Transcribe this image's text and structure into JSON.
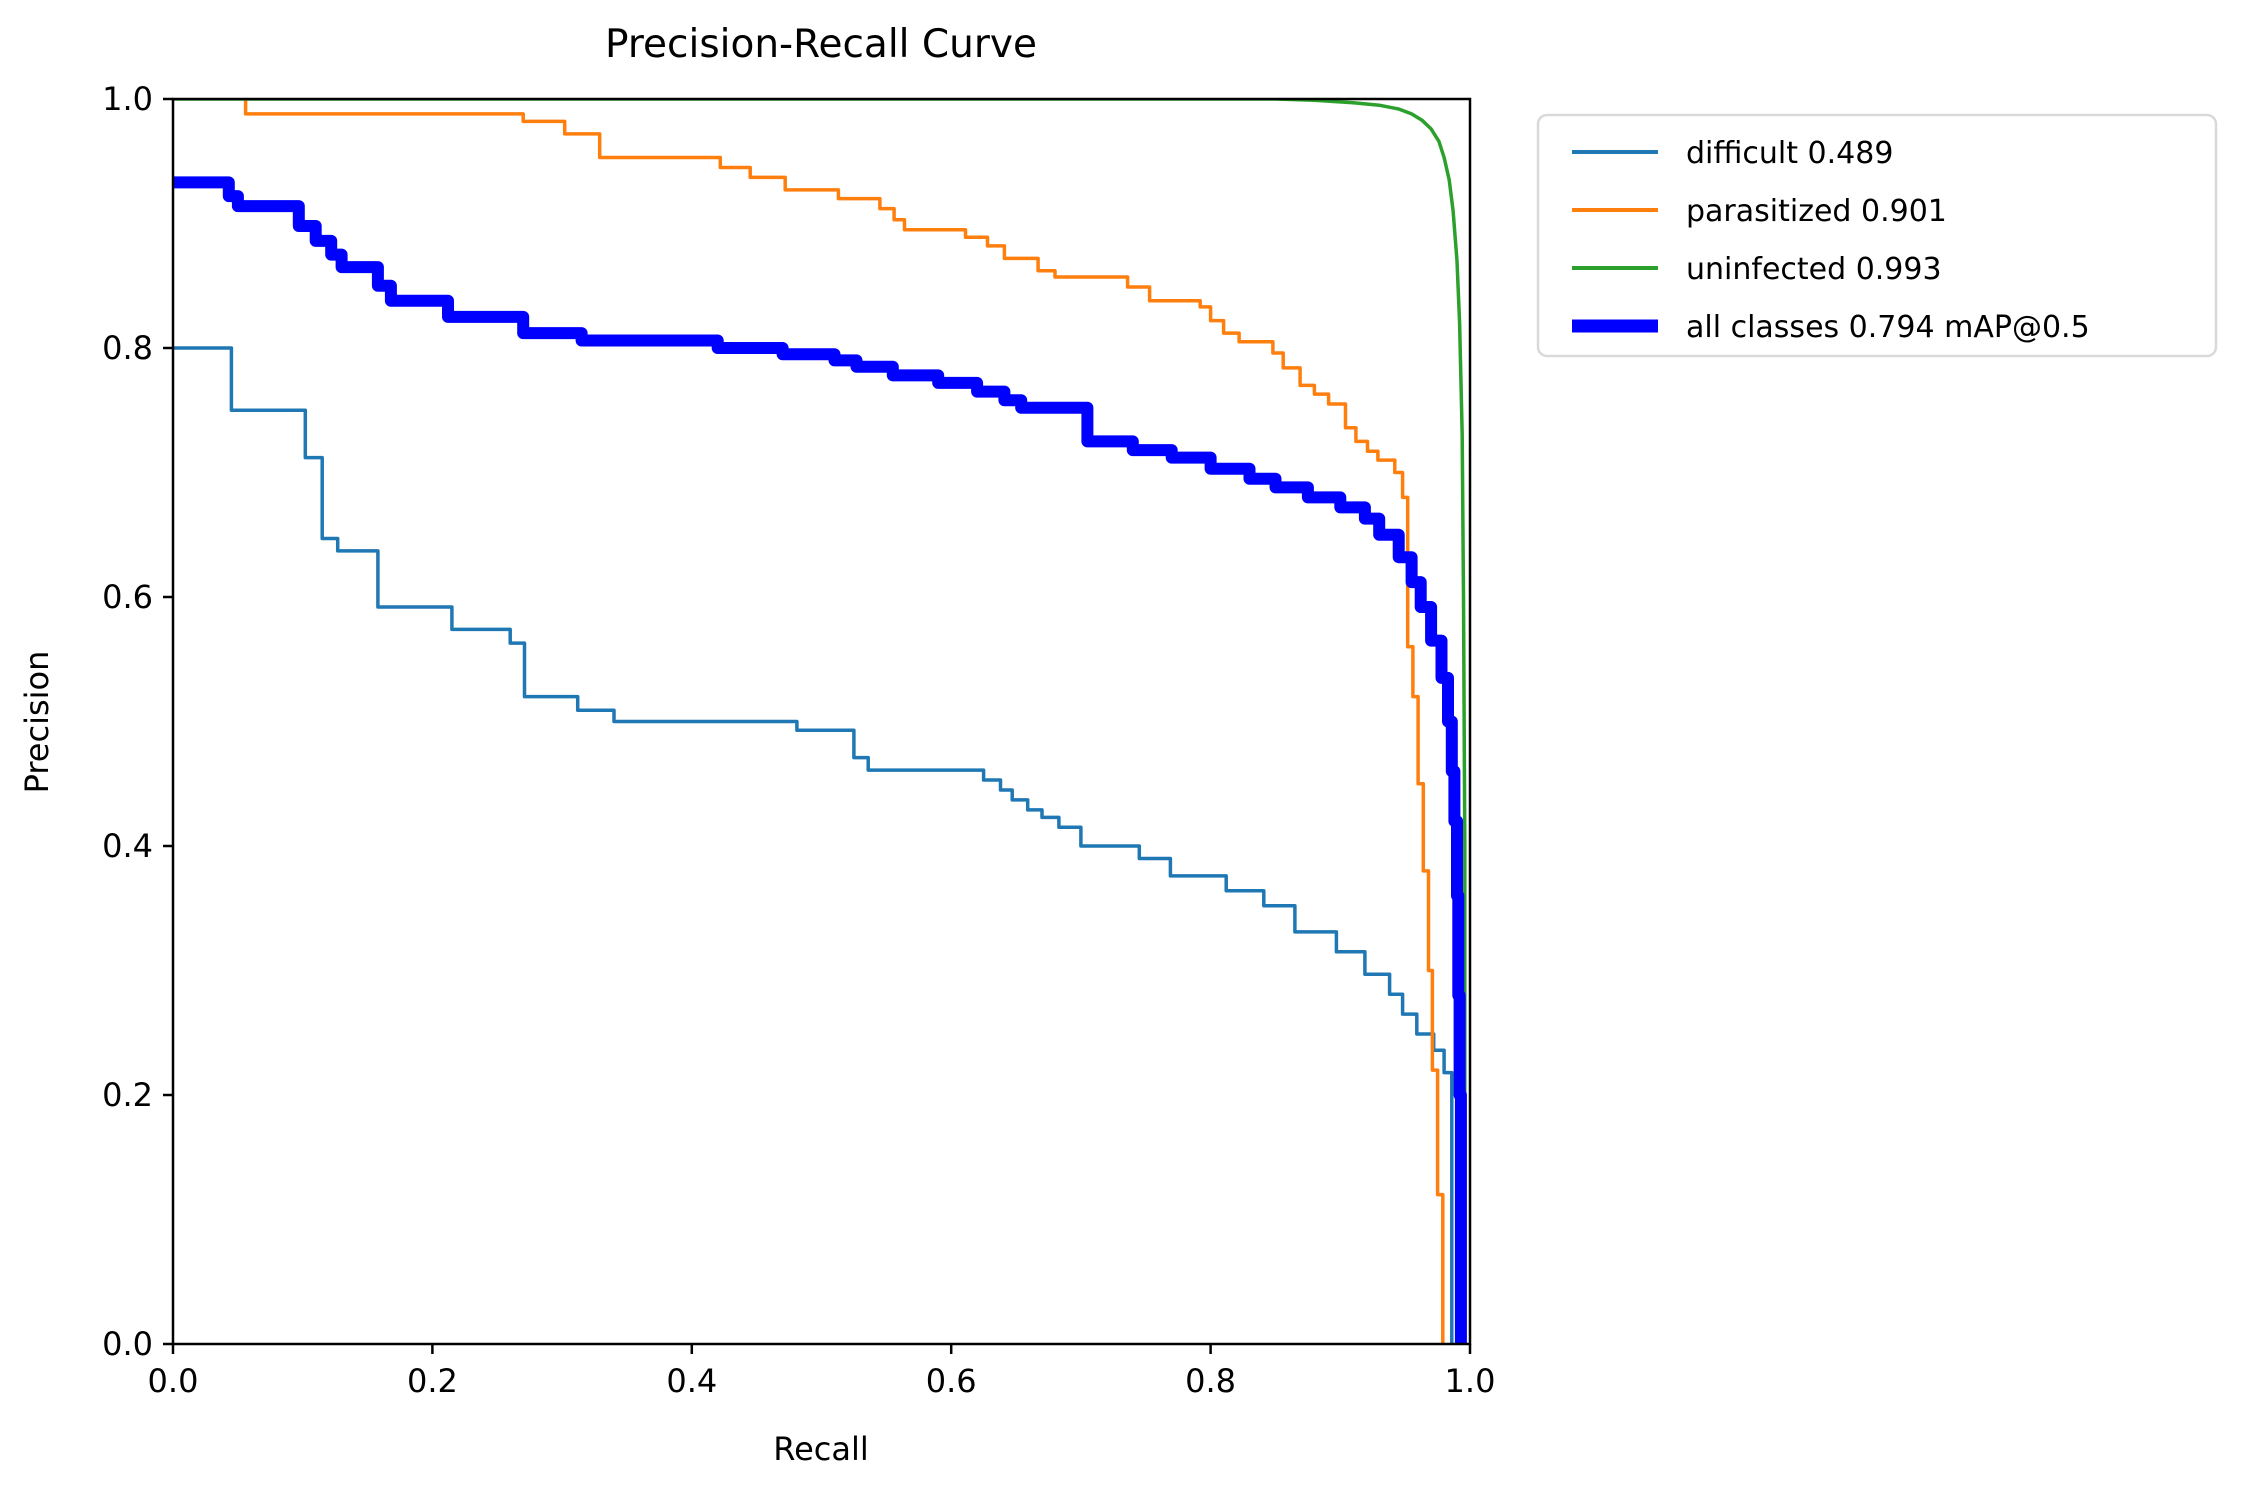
{
  "title": "Precision-Recall Curve",
  "chart_data": {
    "type": "line",
    "title": "Precision-Recall Curve",
    "xlabel": "Recall",
    "ylabel": "Precision",
    "xlim": [
      0.0,
      1.0
    ],
    "ylim": [
      0.0,
      1.0
    ],
    "x_ticks": [
      "0.0",
      "0.2",
      "0.4",
      "0.6",
      "0.8",
      "1.0"
    ],
    "y_ticks": [
      "0.0",
      "0.2",
      "0.4",
      "0.6",
      "0.8",
      "1.0"
    ],
    "grid": false,
    "legend_position": "upper right outside axes",
    "legend_border_color": "#d9d9d9",
    "series": [
      {
        "name": "difficult",
        "legend": "difficult 0.489",
        "ap": 0.489,
        "color": "#1f77b4",
        "width": "thin",
        "points": [
          [
            0.0,
            0.8
          ],
          [
            0.045,
            0.8
          ],
          [
            0.045,
            0.75
          ],
          [
            0.102,
            0.75
          ],
          [
            0.102,
            0.712
          ],
          [
            0.115,
            0.712
          ],
          [
            0.115,
            0.647
          ],
          [
            0.127,
            0.647
          ],
          [
            0.127,
            0.637
          ],
          [
            0.158,
            0.637
          ],
          [
            0.158,
            0.592
          ],
          [
            0.215,
            0.592
          ],
          [
            0.215,
            0.574
          ],
          [
            0.26,
            0.574
          ],
          [
            0.26,
            0.563
          ],
          [
            0.271,
            0.563
          ],
          [
            0.271,
            0.52
          ],
          [
            0.312,
            0.52
          ],
          [
            0.312,
            0.509
          ],
          [
            0.34,
            0.509
          ],
          [
            0.34,
            0.5
          ],
          [
            0.481,
            0.5
          ],
          [
            0.481,
            0.493
          ],
          [
            0.525,
            0.493
          ],
          [
            0.525,
            0.471
          ],
          [
            0.536,
            0.471
          ],
          [
            0.536,
            0.461
          ],
          [
            0.625,
            0.461
          ],
          [
            0.625,
            0.453
          ],
          [
            0.638,
            0.453
          ],
          [
            0.638,
            0.445
          ],
          [
            0.647,
            0.445
          ],
          [
            0.647,
            0.437
          ],
          [
            0.659,
            0.437
          ],
          [
            0.659,
            0.429
          ],
          [
            0.67,
            0.429
          ],
          [
            0.67,
            0.423
          ],
          [
            0.683,
            0.423
          ],
          [
            0.683,
            0.415
          ],
          [
            0.7,
            0.415
          ],
          [
            0.7,
            0.4
          ],
          [
            0.745,
            0.4
          ],
          [
            0.745,
            0.39
          ],
          [
            0.769,
            0.39
          ],
          [
            0.769,
            0.376
          ],
          [
            0.812,
            0.376
          ],
          [
            0.812,
            0.364
          ],
          [
            0.841,
            0.364
          ],
          [
            0.841,
            0.352
          ],
          [
            0.865,
            0.352
          ],
          [
            0.865,
            0.331
          ],
          [
            0.897,
            0.331
          ],
          [
            0.897,
            0.315
          ],
          [
            0.919,
            0.315
          ],
          [
            0.919,
            0.297
          ],
          [
            0.938,
            0.297
          ],
          [
            0.938,
            0.281
          ],
          [
            0.948,
            0.281
          ],
          [
            0.948,
            0.265
          ],
          [
            0.959,
            0.265
          ],
          [
            0.959,
            0.249
          ],
          [
            0.972,
            0.249
          ],
          [
            0.972,
            0.236
          ],
          [
            0.98,
            0.236
          ],
          [
            0.98,
            0.218
          ],
          [
            0.986,
            0.218
          ],
          [
            0.986,
            0.0
          ]
        ]
      },
      {
        "name": "parasitized",
        "legend": "parasitized 0.901",
        "ap": 0.901,
        "color": "#ff7f0e",
        "width": "thin",
        "points": [
          [
            0.056,
            1.0
          ],
          [
            0.056,
            0.988
          ],
          [
            0.27,
            0.988
          ],
          [
            0.27,
            0.982
          ],
          [
            0.302,
            0.982
          ],
          [
            0.302,
            0.972
          ],
          [
            0.329,
            0.972
          ],
          [
            0.329,
            0.953
          ],
          [
            0.422,
            0.953
          ],
          [
            0.422,
            0.945
          ],
          [
            0.445,
            0.945
          ],
          [
            0.445,
            0.937
          ],
          [
            0.472,
            0.937
          ],
          [
            0.472,
            0.927
          ],
          [
            0.513,
            0.927
          ],
          [
            0.513,
            0.92
          ],
          [
            0.545,
            0.92
          ],
          [
            0.545,
            0.912
          ],
          [
            0.556,
            0.912
          ],
          [
            0.556,
            0.903
          ],
          [
            0.564,
            0.903
          ],
          [
            0.564,
            0.895
          ],
          [
            0.611,
            0.895
          ],
          [
            0.611,
            0.889
          ],
          [
            0.628,
            0.889
          ],
          [
            0.628,
            0.882
          ],
          [
            0.641,
            0.882
          ],
          [
            0.641,
            0.872
          ],
          [
            0.667,
            0.872
          ],
          [
            0.667,
            0.862
          ],
          [
            0.68,
            0.862
          ],
          [
            0.68,
            0.857
          ],
          [
            0.736,
            0.857
          ],
          [
            0.736,
            0.849
          ],
          [
            0.753,
            0.849
          ],
          [
            0.753,
            0.838
          ],
          [
            0.792,
            0.838
          ],
          [
            0.792,
            0.833
          ],
          [
            0.8,
            0.833
          ],
          [
            0.8,
            0.822
          ],
          [
            0.81,
            0.822
          ],
          [
            0.81,
            0.812
          ],
          [
            0.822,
            0.812
          ],
          [
            0.822,
            0.805
          ],
          [
            0.848,
            0.805
          ],
          [
            0.848,
            0.796
          ],
          [
            0.856,
            0.796
          ],
          [
            0.856,
            0.784
          ],
          [
            0.869,
            0.784
          ],
          [
            0.869,
            0.77
          ],
          [
            0.88,
            0.77
          ],
          [
            0.88,
            0.763
          ],
          [
            0.891,
            0.763
          ],
          [
            0.891,
            0.755
          ],
          [
            0.904,
            0.755
          ],
          [
            0.904,
            0.736
          ],
          [
            0.912,
            0.736
          ],
          [
            0.912,
            0.725
          ],
          [
            0.921,
            0.725
          ],
          [
            0.921,
            0.717
          ],
          [
            0.929,
            0.717
          ],
          [
            0.929,
            0.71
          ],
          [
            0.942,
            0.71
          ],
          [
            0.942,
            0.7
          ],
          [
            0.948,
            0.7
          ],
          [
            0.948,
            0.68
          ],
          [
            0.952,
            0.68
          ],
          [
            0.952,
            0.56
          ],
          [
            0.956,
            0.56
          ],
          [
            0.956,
            0.52
          ],
          [
            0.96,
            0.52
          ],
          [
            0.96,
            0.45
          ],
          [
            0.964,
            0.45
          ],
          [
            0.964,
            0.38
          ],
          [
            0.968,
            0.38
          ],
          [
            0.968,
            0.3
          ],
          [
            0.971,
            0.3
          ],
          [
            0.971,
            0.22
          ],
          [
            0.975,
            0.22
          ],
          [
            0.975,
            0.12
          ],
          [
            0.979,
            0.12
          ],
          [
            0.979,
            0.0
          ]
        ]
      },
      {
        "name": "uninfected",
        "legend": "uninfected 0.993",
        "ap": 0.993,
        "color": "#2ca02c",
        "width": "thin",
        "points": [
          [
            0.0,
            1.0
          ],
          [
            0.85,
            1.0
          ],
          [
            0.88,
            0.999
          ],
          [
            0.91,
            0.997
          ],
          [
            0.93,
            0.995
          ],
          [
            0.945,
            0.992
          ],
          [
            0.955,
            0.988
          ],
          [
            0.963,
            0.983
          ],
          [
            0.97,
            0.976
          ],
          [
            0.976,
            0.966
          ],
          [
            0.98,
            0.953
          ],
          [
            0.984,
            0.935
          ],
          [
            0.987,
            0.91
          ],
          [
            0.99,
            0.87
          ],
          [
            0.992,
            0.82
          ],
          [
            0.994,
            0.73
          ],
          [
            0.995,
            0.6
          ],
          [
            0.996,
            0.4
          ],
          [
            0.996,
            0.0
          ]
        ]
      },
      {
        "name": "all classes",
        "legend": "all classes 0.794 mAP@0.5",
        "map_at_0_5": 0.794,
        "color": "#0000ff",
        "width": "thick",
        "points": [
          [
            0.0,
            0.933
          ],
          [
            0.043,
            0.933
          ],
          [
            0.043,
            0.922
          ],
          [
            0.05,
            0.922
          ],
          [
            0.05,
            0.914
          ],
          [
            0.097,
            0.914
          ],
          [
            0.097,
            0.898
          ],
          [
            0.11,
            0.898
          ],
          [
            0.11,
            0.886
          ],
          [
            0.122,
            0.886
          ],
          [
            0.122,
            0.875
          ],
          [
            0.13,
            0.875
          ],
          [
            0.13,
            0.865
          ],
          [
            0.158,
            0.865
          ],
          [
            0.158,
            0.85
          ],
          [
            0.168,
            0.85
          ],
          [
            0.168,
            0.838
          ],
          [
            0.212,
            0.838
          ],
          [
            0.212,
            0.825
          ],
          [
            0.27,
            0.825
          ],
          [
            0.27,
            0.812
          ],
          [
            0.315,
            0.812
          ],
          [
            0.315,
            0.806
          ],
          [
            0.42,
            0.806
          ],
          [
            0.42,
            0.8
          ],
          [
            0.47,
            0.8
          ],
          [
            0.47,
            0.795
          ],
          [
            0.51,
            0.795
          ],
          [
            0.51,
            0.79
          ],
          [
            0.527,
            0.79
          ],
          [
            0.527,
            0.785
          ],
          [
            0.555,
            0.785
          ],
          [
            0.555,
            0.778
          ],
          [
            0.59,
            0.778
          ],
          [
            0.59,
            0.772
          ],
          [
            0.62,
            0.772
          ],
          [
            0.62,
            0.765
          ],
          [
            0.641,
            0.765
          ],
          [
            0.641,
            0.758
          ],
          [
            0.654,
            0.758
          ],
          [
            0.654,
            0.752
          ],
          [
            0.705,
            0.752
          ],
          [
            0.705,
            0.725
          ],
          [
            0.74,
            0.725
          ],
          [
            0.74,
            0.718
          ],
          [
            0.77,
            0.718
          ],
          [
            0.77,
            0.712
          ],
          [
            0.8,
            0.712
          ],
          [
            0.8,
            0.703
          ],
          [
            0.83,
            0.703
          ],
          [
            0.83,
            0.695
          ],
          [
            0.85,
            0.695
          ],
          [
            0.85,
            0.688
          ],
          [
            0.875,
            0.688
          ],
          [
            0.875,
            0.68
          ],
          [
            0.9,
            0.68
          ],
          [
            0.9,
            0.672
          ],
          [
            0.919,
            0.672
          ],
          [
            0.919,
            0.663
          ],
          [
            0.93,
            0.663
          ],
          [
            0.93,
            0.65
          ],
          [
            0.945,
            0.65
          ],
          [
            0.945,
            0.632
          ],
          [
            0.955,
            0.632
          ],
          [
            0.955,
            0.612
          ],
          [
            0.962,
            0.612
          ],
          [
            0.962,
            0.592
          ],
          [
            0.97,
            0.592
          ],
          [
            0.97,
            0.565
          ],
          [
            0.978,
            0.565
          ],
          [
            0.978,
            0.535
          ],
          [
            0.983,
            0.535
          ],
          [
            0.983,
            0.5
          ],
          [
            0.986,
            0.5
          ],
          [
            0.986,
            0.46
          ],
          [
            0.988,
            0.46
          ],
          [
            0.988,
            0.42
          ],
          [
            0.99,
            0.42
          ],
          [
            0.99,
            0.36
          ],
          [
            0.991,
            0.36
          ],
          [
            0.991,
            0.28
          ],
          [
            0.992,
            0.28
          ],
          [
            0.992,
            0.2
          ],
          [
            0.993,
            0.2
          ],
          [
            0.993,
            0.0
          ]
        ]
      }
    ]
  }
}
